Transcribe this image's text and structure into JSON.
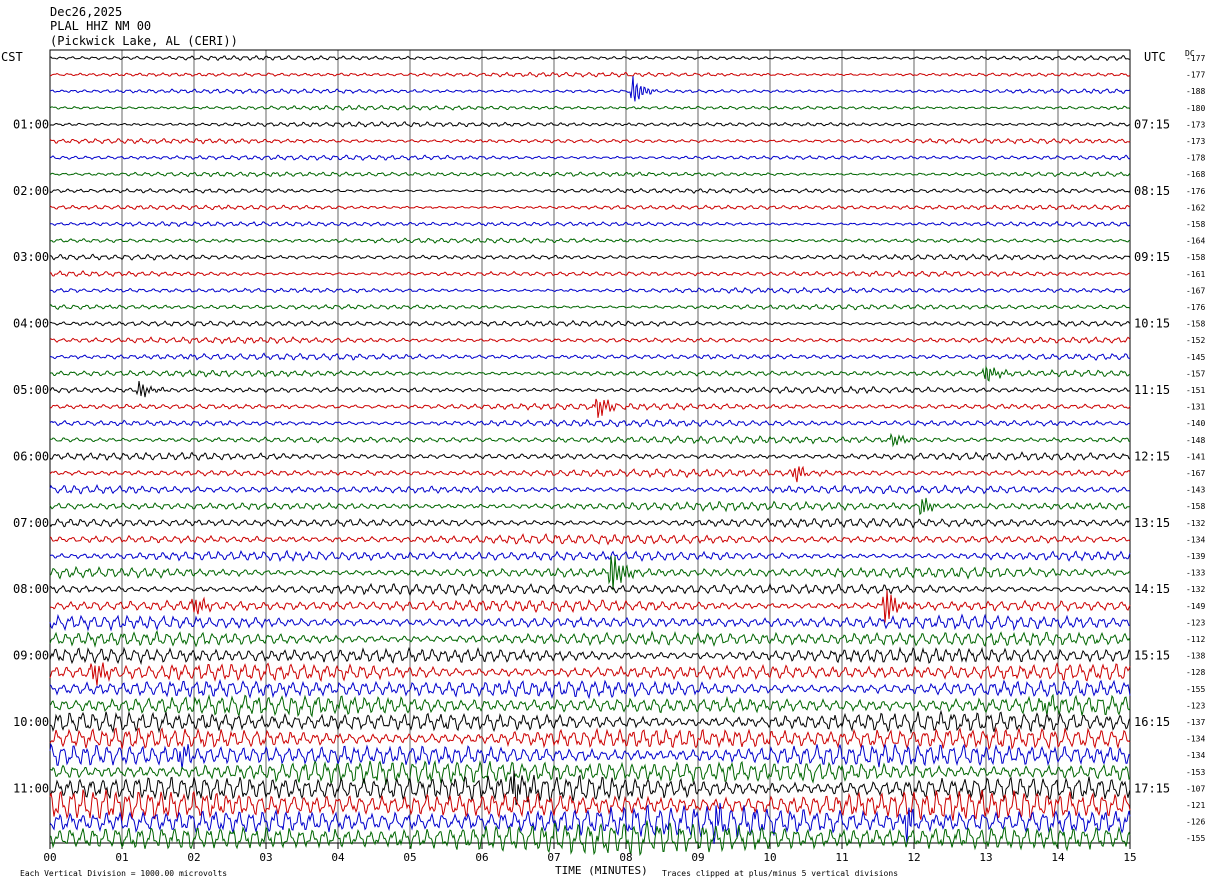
{
  "chart_data": {
    "type": "line",
    "title": "Dec26,2025",
    "station": "PLAL HHZ NM 00",
    "location": "(Pickwick Lake, AL (CERI))",
    "left_timezone": "CST",
    "right_timezone": "UTC",
    "dc_label": "DC",
    "xlabel": "TIME (MINUTES)",
    "x_tick_labels": [
      "00",
      "01",
      "02",
      "03",
      "04",
      "05",
      "06",
      "07",
      "08",
      "09",
      "10",
      "11",
      "12",
      "13",
      "14",
      "15"
    ],
    "xlim": [
      0,
      15
    ],
    "left_hour_labels": [
      "01:00",
      "02:00",
      "03:00",
      "04:00",
      "05:00",
      "06:00",
      "07:00",
      "08:00",
      "09:00",
      "10:00",
      "11:00"
    ],
    "right_hour_labels": [
      "07:15",
      "08:15",
      "09:15",
      "10:15",
      "11:15",
      "12:15",
      "13:15",
      "14:15",
      "15:15",
      "16:15",
      "17:15"
    ],
    "dc_offsets": [
      "-177",
      "-177",
      "-188",
      "-180",
      "-173",
      "-173",
      "-178",
      "-168",
      "-176",
      "-162",
      "-158",
      "-164",
      "-158",
      "-161",
      "-167",
      "-176",
      "-158",
      "-152",
      "-145",
      "-157",
      "-151",
      "-131",
      "-140",
      "-148",
      "-141",
      "-167",
      "-143",
      "-158",
      "-132",
      "-134",
      "-139",
      "-133",
      "-132",
      "-149",
      "-123",
      "-112",
      "-138",
      "-128",
      "-155",
      "-123",
      "-137",
      "-134",
      "-134",
      "-153",
      "-107",
      "-121",
      "-126",
      "-155"
    ],
    "trace_colors": [
      "#000000",
      "#cc0000",
      "#0000cc",
      "#006600"
    ],
    "trace_amplitude_by_row": [
      0.18,
      0.18,
      0.18,
      0.18,
      0.2,
      0.2,
      0.2,
      0.2,
      0.2,
      0.2,
      0.2,
      0.2,
      0.22,
      0.22,
      0.22,
      0.22,
      0.24,
      0.24,
      0.26,
      0.26,
      0.26,
      0.27,
      0.28,
      0.3,
      0.3,
      0.32,
      0.34,
      0.36,
      0.38,
      0.4,
      0.42,
      0.44,
      0.48,
      0.5,
      0.55,
      0.6,
      0.65,
      0.7,
      0.75,
      0.8,
      0.85,
      0.9,
      0.95,
      1.0,
      1.1,
      1.2,
      1.25,
      1.3
    ],
    "events": [
      {
        "row": 2,
        "minute": 8.1,
        "amp": 1.0
      },
      {
        "row": 19,
        "minute": 13.0,
        "amp": 0.8
      },
      {
        "row": 20,
        "minute": 1.25,
        "amp": 0.7
      },
      {
        "row": 21,
        "minute": 7.6,
        "amp": 0.9
      },
      {
        "row": 23,
        "minute": 11.7,
        "amp": 0.5
      },
      {
        "row": 25,
        "minute": 10.35,
        "amp": 0.6
      },
      {
        "row": 27,
        "minute": 12.1,
        "amp": 0.7
      },
      {
        "row": 31,
        "minute": 7.8,
        "amp": 1.6
      },
      {
        "row": 33,
        "minute": 11.6,
        "amp": 1.4
      },
      {
        "row": 33,
        "minute": 2.0,
        "amp": 0.7
      },
      {
        "row": 37,
        "minute": 0.6,
        "amp": 1.0
      },
      {
        "row": 39,
        "minute": 13.8,
        "amp": 0.7
      },
      {
        "row": 42,
        "minute": 1.8,
        "amp": 0.8
      },
      {
        "row": 44,
        "minute": 6.45,
        "amp": 1.5
      },
      {
        "row": 46,
        "minute": 9.25,
        "amp": 1.0
      },
      {
        "row": 46,
        "minute": 11.9,
        "amp": 1.2
      }
    ]
  },
  "footer": {
    "scale_note": "Each Vertical Division = 1000.00 microvolts",
    "clip_note": "Traces clipped at plus/minus 5 vertical divisions"
  }
}
